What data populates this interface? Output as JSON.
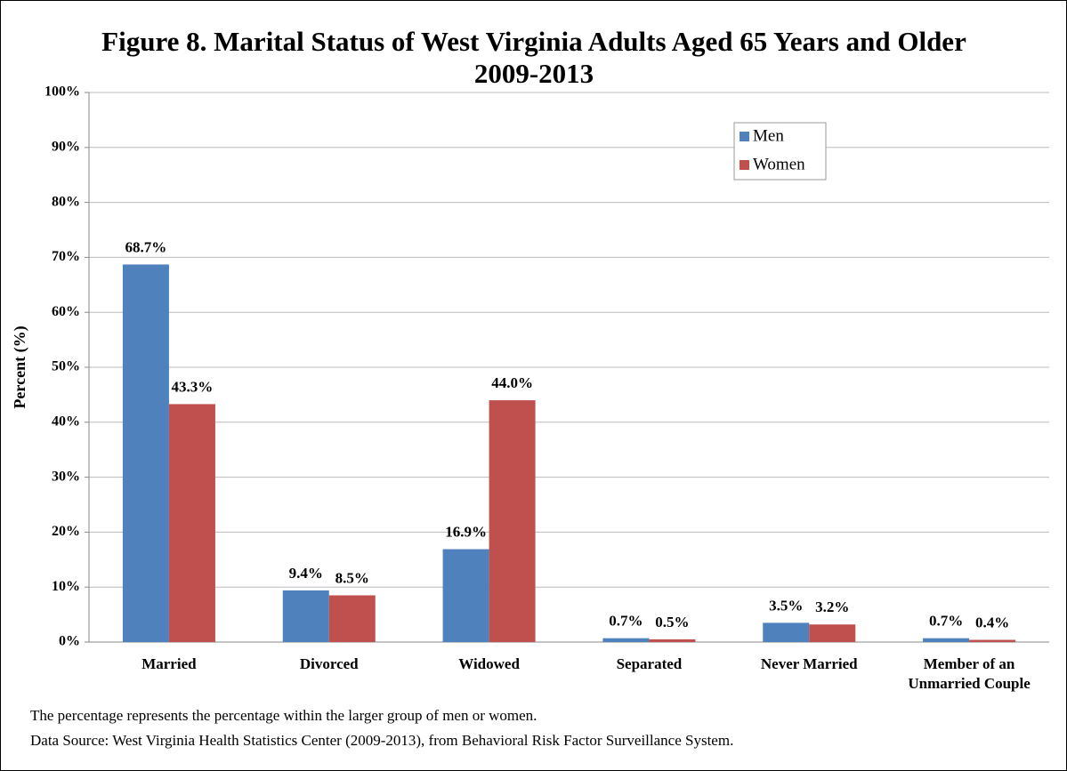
{
  "chart_data": {
    "type": "bar",
    "title": [
      "Figure 8. Marital Status of West Virginia Adults Aged 65 Years and Older",
      "2009-2013"
    ],
    "y_label": "Percent (%)",
    "categories": [
      "Married",
      "Divorced",
      "Widowed",
      "Separated",
      "Never Married",
      "Member of an Unmarried Couple"
    ],
    "series": [
      {
        "name": "Men",
        "color": "#4f81bd",
        "values": [
          68.7,
          9.4,
          16.9,
          0.7,
          3.5,
          0.7
        ],
        "value_labels": [
          "68.7%",
          "9.4%",
          "16.9%",
          "0.7%",
          "3.5%",
          "0.7%"
        ]
      },
      {
        "name": "Women",
        "color": "#c0504d",
        "values": [
          43.3,
          8.5,
          44.0,
          0.5,
          3.2,
          0.4
        ],
        "value_labels": [
          "43.3%",
          "8.5%",
          "44.0%",
          "0.5%",
          "3.2%",
          "0.4%"
        ]
      }
    ],
    "ylim": [
      0,
      100
    ],
    "yticks": [
      {
        "value": 0,
        "label": "0%"
      },
      {
        "value": 10,
        "label": "10%"
      },
      {
        "value": 20,
        "label": "20%"
      },
      {
        "value": 30,
        "label": "30%"
      },
      {
        "value": 40,
        "label": "40%"
      },
      {
        "value": 50,
        "label": "50%"
      },
      {
        "value": 60,
        "label": "60%"
      },
      {
        "value": 70,
        "label": "70%"
      },
      {
        "value": 80,
        "label": "80%"
      },
      {
        "value": 90,
        "label": "90%"
      },
      {
        "value": 100,
        "label": "100%"
      }
    ],
    "grid": true,
    "legend": "top-right",
    "notes": [
      "The percentage represents the percentage within the larger group of men or women.",
      "Data Source: West Virginia Health Statistics Center (2009-2013), from Behavioral Risk Factor Surveillance System."
    ]
  }
}
